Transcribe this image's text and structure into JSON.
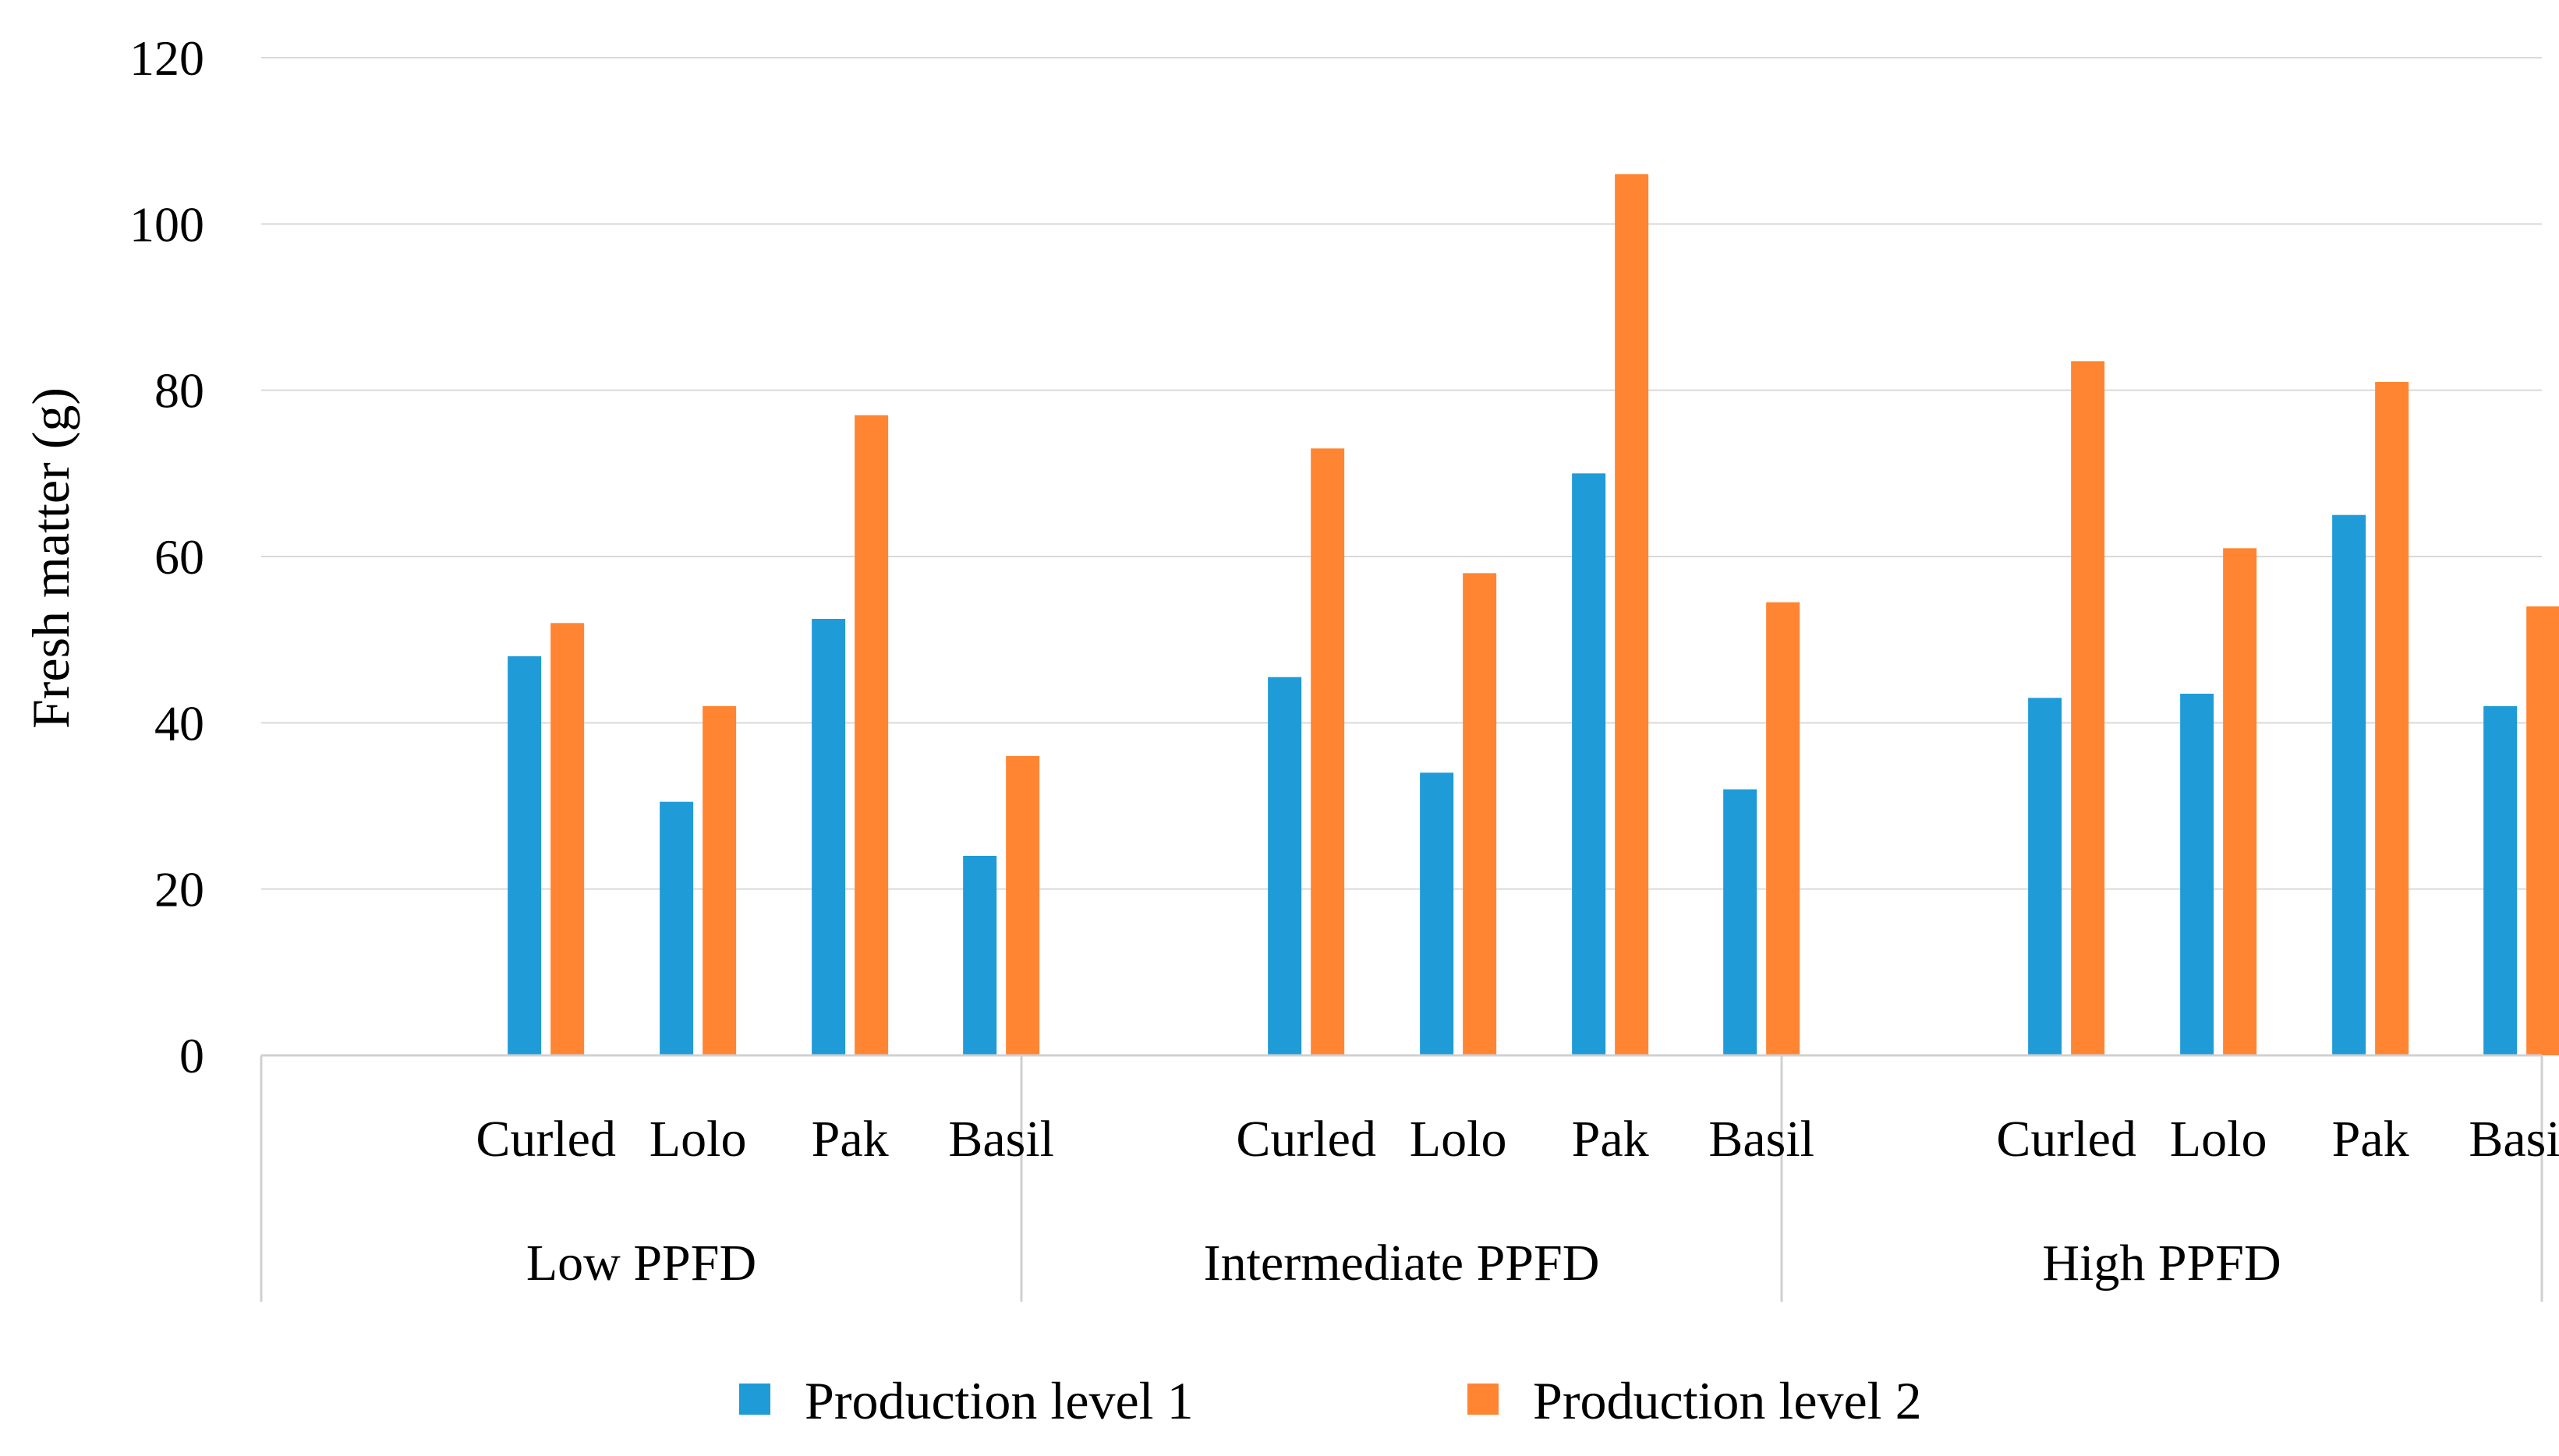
{
  "chart_data": {
    "type": "bar",
    "title": "",
    "xlabel": "",
    "ylabel": "Fresh matter (g)",
    "ylim": [
      0,
      120
    ],
    "yticks": [
      0,
      20,
      40,
      60,
      80,
      100,
      120
    ],
    "legend_position": "bottom-center",
    "grid": true,
    "groups": [
      "Low PPFD",
      "Intermediate PPFD",
      "High PPFD"
    ],
    "categories": [
      "Curled",
      "Lolo",
      "Pak",
      "Basil"
    ],
    "series": [
      {
        "name": "Production level 1",
        "color": "#1f9bd7",
        "values": [
          [
            48,
            30.5,
            52.5,
            24
          ],
          [
            45.5,
            34,
            70,
            32
          ],
          [
            43,
            43.5,
            65,
            42
          ]
        ]
      },
      {
        "name": "Production level 2",
        "color": "#ff8533",
        "values": [
          [
            52,
            42,
            77,
            36
          ],
          [
            73,
            58,
            106,
            54.5
          ],
          [
            83.5,
            61,
            81,
            54
          ]
        ]
      }
    ]
  }
}
